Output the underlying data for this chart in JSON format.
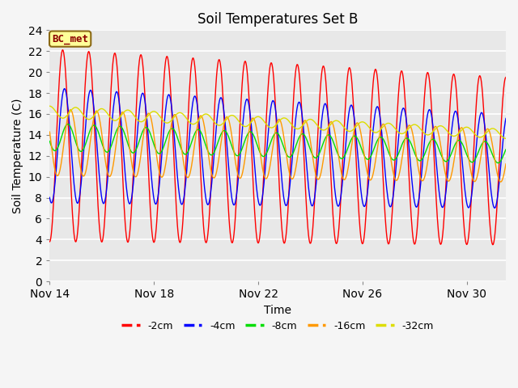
{
  "title": "Soil Temperatures Set B",
  "xlabel": "Time",
  "ylabel": "Soil Temperature (C)",
  "ylim": [
    0,
    24
  ],
  "annotation": "BC_met",
  "plot_bg_color": "#e8e8e8",
  "fig_bg_color": "#f5f5f5",
  "series_order": [
    "-2cm",
    "-4cm",
    "-8cm",
    "-16cm",
    "-32cm"
  ],
  "series": {
    "-2cm": {
      "color": "#ff0000",
      "amp_start": 9.2,
      "amp_end": 8.0,
      "mean_start": 13.0,
      "mean_end": 11.5,
      "phase": 0.25
    },
    "-4cm": {
      "color": "#0000ff",
      "amp_start": 5.5,
      "amp_end": 4.5,
      "mean_start": 13.0,
      "mean_end": 11.5,
      "phase": 0.32
    },
    "-8cm": {
      "color": "#00dd00",
      "amp_start": 1.3,
      "amp_end": 1.0,
      "mean_start": 13.8,
      "mean_end": 12.3,
      "phase": 0.45
    },
    "-16cm": {
      "color": "#ff9900",
      "amp_start": 3.2,
      "amp_end": 2.5,
      "mean_start": 13.3,
      "mean_end": 12.0,
      "phase": 0.55
    },
    "-32cm": {
      "color": "#dddd00",
      "amp_start": 0.55,
      "amp_end": 0.45,
      "mean_start": 16.2,
      "mean_end": 14.1,
      "phase": 0.75
    }
  },
  "xtick_positions": [
    0,
    4,
    8,
    12,
    16
  ],
  "xtick_labels": [
    "Nov 14",
    "Nov 18",
    "Nov 22",
    "Nov 26",
    "Nov 30"
  ],
  "ytick_positions": [
    0,
    2,
    4,
    6,
    8,
    10,
    12,
    14,
    16,
    18,
    20,
    22,
    24
  ],
  "num_days": 17.5,
  "samples_per_day": 48
}
